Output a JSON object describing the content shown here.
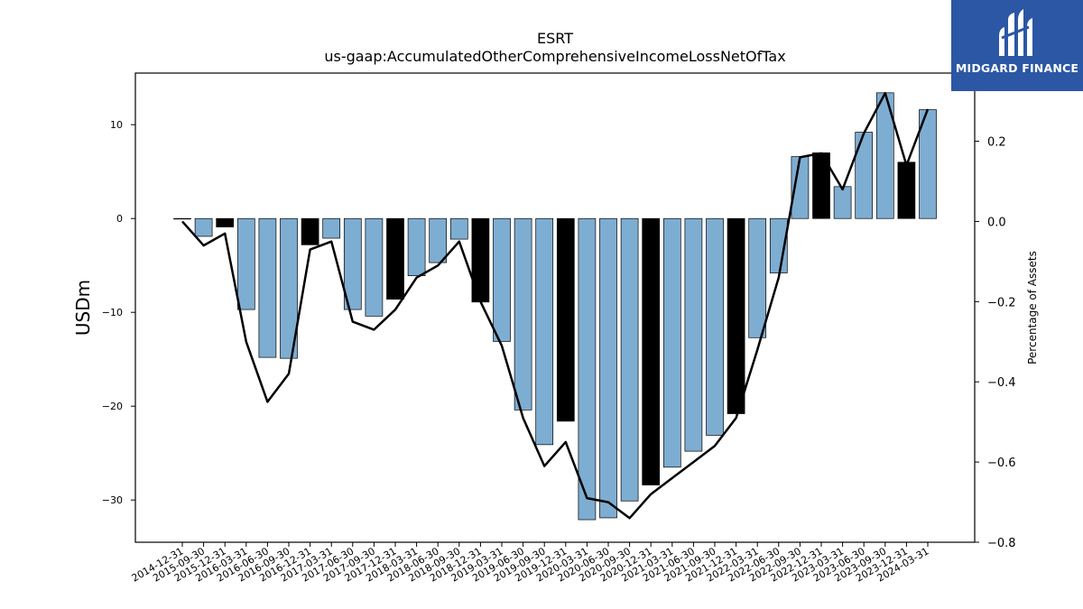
{
  "logo": {
    "text": "MIDGARD FINANCE",
    "icon": "midgard-mark-icon",
    "background": "#2b57a5"
  },
  "chart_data": {
    "type": "bar",
    "title": "ESRT",
    "subtitle": "us-gaap:AccumulatedOtherComprehensiveIncomeLossNetOfTax",
    "ylabel": "USDm",
    "y2label": "Percentage of Assets",
    "ylim": [
      -34.5,
      15.5
    ],
    "y2lim": [
      -0.8,
      0.37
    ],
    "yticks": [
      10,
      0,
      -10,
      -20,
      -30
    ],
    "y2ticks": [
      0.2,
      0.0,
      -0.2,
      -0.4,
      -0.6,
      -0.8
    ],
    "bar_colors": {
      "default": "#7eadd2",
      "highlight": "#000000"
    },
    "line_color": "#000000",
    "categories": [
      "2014-12-31",
      "2015-09-30",
      "2015-12-31",
      "2016-03-31",
      "2016-06-30",
      "2016-09-30",
      "2016-12-31",
      "2017-03-31",
      "2017-06-30",
      "2017-09-30",
      "2017-12-31",
      "2018-03-31",
      "2018-06-30",
      "2018-09-30",
      "2018-12-31",
      "2019-03-31",
      "2019-06-30",
      "2019-09-30",
      "2019-12-31",
      "2020-03-31",
      "2020-06-30",
      "2020-09-30",
      "2020-12-31",
      "2021-03-31",
      "2021-06-30",
      "2021-09-30",
      "2021-12-31",
      "2022-03-31",
      "2022-06-30",
      "2022-09-30",
      "2022-12-31",
      "2023-03-31",
      "2023-06-30",
      "2023-09-30",
      "2023-12-31",
      "2024-03-31"
    ],
    "series": [
      {
        "type": "bar",
        "values": [
          0,
          -1.9,
          -0.9,
          -9.7,
          -14.8,
          -14.9,
          -2.8,
          -2.1,
          -9.7,
          -10.4,
          -8.6,
          -6.1,
          -4.7,
          -2.2,
          -8.9,
          -13.1,
          -20.4,
          -24.1,
          -21.6,
          -32.1,
          -31.9,
          -30.1,
          -28.4,
          -26.5,
          -24.8,
          -23.1,
          -20.8,
          -12.7,
          -5.8,
          6.6,
          7.0,
          3.4,
          9.2,
          13.4,
          6.0,
          11.6
        ],
        "highlight": [
          false,
          false,
          true,
          false,
          false,
          false,
          true,
          false,
          false,
          false,
          true,
          false,
          false,
          false,
          true,
          false,
          false,
          false,
          true,
          false,
          false,
          false,
          true,
          false,
          false,
          false,
          true,
          false,
          false,
          false,
          true,
          false,
          false,
          false,
          true,
          false
        ]
      },
      {
        "type": "line",
        "axis": "right",
        "values": [
          0.0,
          -0.06,
          -0.03,
          -0.3,
          -0.45,
          -0.38,
          -0.07,
          -0.05,
          -0.25,
          -0.27,
          -0.22,
          -0.14,
          -0.11,
          -0.05,
          -0.2,
          -0.31,
          -0.49,
          -0.61,
          -0.55,
          -0.69,
          -0.7,
          -0.74,
          -0.68,
          -0.64,
          -0.6,
          -0.56,
          -0.49,
          -0.32,
          -0.14,
          0.16,
          0.17,
          0.08,
          0.22,
          0.32,
          0.14,
          0.28
        ]
      }
    ],
    "grid": false
  }
}
